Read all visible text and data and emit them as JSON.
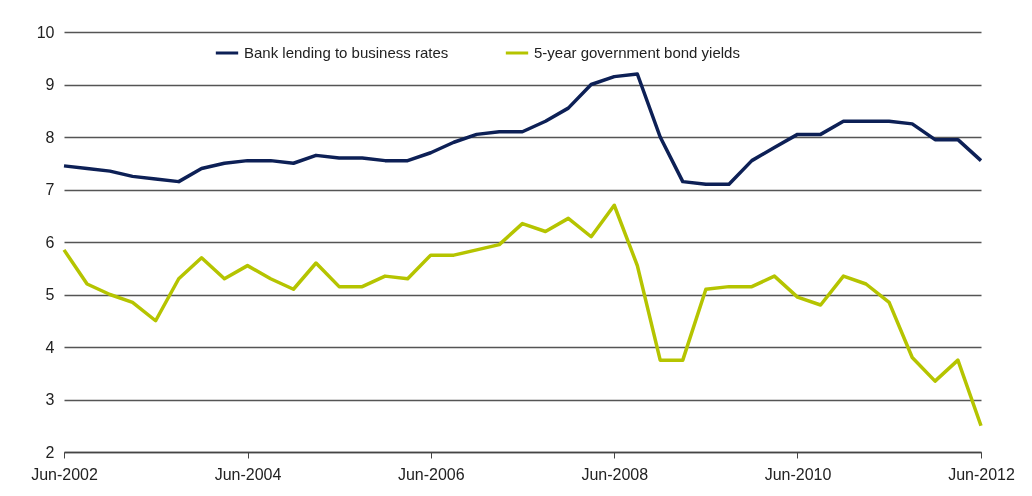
{
  "chart_data": {
    "type": "line",
    "x": [
      "2002-06",
      "2002-09",
      "2002-12",
      "2003-03",
      "2003-06",
      "2003-09",
      "2003-12",
      "2004-03",
      "2004-06",
      "2004-09",
      "2004-12",
      "2005-03",
      "2005-06",
      "2005-09",
      "2005-12",
      "2006-03",
      "2006-06",
      "2006-09",
      "2006-12",
      "2007-03",
      "2007-06",
      "2007-09",
      "2007-12",
      "2008-03",
      "2008-06",
      "2008-09",
      "2008-12",
      "2009-03",
      "2009-06",
      "2009-09",
      "2009-12",
      "2010-03",
      "2010-06",
      "2010-09",
      "2010-12",
      "2011-03",
      "2011-06",
      "2011-09",
      "2011-12",
      "2012-03",
      "2012-06"
    ],
    "series": [
      {
        "name": "Bank lending to business rates",
        "color": "#0d2056",
        "values": [
          7.45,
          7.4,
          7.35,
          7.25,
          7.2,
          7.15,
          7.4,
          7.5,
          7.55,
          7.55,
          7.5,
          7.65,
          7.6,
          7.6,
          7.55,
          7.55,
          7.7,
          7.9,
          8.05,
          8.1,
          8.1,
          8.3,
          8.55,
          9.0,
          9.15,
          9.2,
          8.0,
          7.15,
          7.1,
          7.1,
          7.55,
          7.8,
          8.05,
          8.05,
          8.3,
          8.3,
          8.3,
          8.25,
          7.95,
          7.95,
          7.55
        ]
      },
      {
        "name": "5-year government bond yields",
        "color": "#b5c400",
        "values": [
          5.85,
          5.2,
          5.0,
          4.85,
          4.5,
          5.3,
          5.7,
          5.3,
          5.55,
          5.3,
          5.1,
          5.6,
          5.15,
          5.15,
          5.35,
          5.3,
          5.75,
          5.75,
          5.85,
          5.95,
          6.35,
          6.2,
          6.45,
          6.1,
          6.7,
          5.55,
          3.75,
          3.75,
          5.1,
          5.15,
          5.15,
          5.35,
          4.95,
          4.8,
          5.35,
          5.2,
          4.85,
          3.8,
          3.35,
          3.75,
          2.5
        ]
      }
    ],
    "xlim": [
      "2002-06",
      "2012-06"
    ],
    "xticks": [
      {
        "value": "2002-06",
        "label": "Jun-2002"
      },
      {
        "value": "2004-06",
        "label": "Jun-2004"
      },
      {
        "value": "2006-06",
        "label": "Jun-2006"
      },
      {
        "value": "2008-06",
        "label": "Jun-2008"
      },
      {
        "value": "2010-06",
        "label": "Jun-2010"
      },
      {
        "value": "2012-06",
        "label": "Jun-2012"
      }
    ],
    "ylim": [
      2,
      10
    ],
    "yticks": [
      2,
      3,
      4,
      5,
      6,
      7,
      8,
      9,
      10
    ],
    "grid": "y",
    "legend": "top",
    "marker": "none",
    "line_style": "solid"
  }
}
